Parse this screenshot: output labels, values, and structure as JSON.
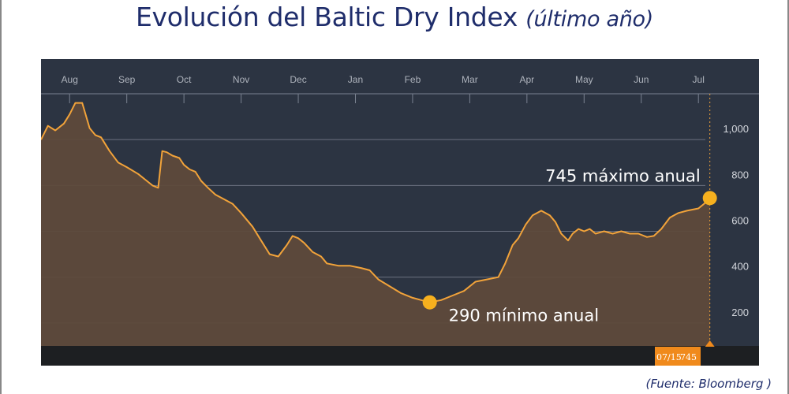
{
  "title": {
    "main": "Evolución del Baltic Dry Index",
    "sub": "(último año)"
  },
  "source": "(Fuente: Bloomberg )",
  "colors": {
    "background": "#2c3442",
    "line": "#f2a33a",
    "area": "#5e4a3b",
    "marker": "#f6b01e",
    "badge": "#f08a1c",
    "title": "#1f2d6b"
  },
  "chart_data": {
    "type": "area",
    "title": "Evolución del Baltic Dry Index (último año)",
    "xlabel": "",
    "ylabel": "",
    "x_ticks": [
      "Aug",
      "Sep",
      "Oct",
      "Nov",
      "Dec",
      "Jan",
      "Feb",
      "Mar",
      "Apr",
      "May",
      "Jun",
      "Jul"
    ],
    "y_ticks": [
      200,
      400,
      600,
      800,
      1000
    ],
    "y_tick_labels": [
      "200",
      "400",
      "600",
      "800",
      "1,000"
    ],
    "ylim": [
      100,
      1200
    ],
    "xlim": [
      0,
      12.56
    ],
    "grid": true,
    "series": [
      {
        "points": [
          [
            0.0,
            1000
          ],
          [
            0.12,
            1060
          ],
          [
            0.25,
            1040
          ],
          [
            0.4,
            1070
          ],
          [
            0.5,
            1110
          ],
          [
            0.6,
            1160
          ],
          [
            0.72,
            1160
          ],
          [
            0.85,
            1050
          ],
          [
            0.95,
            1020
          ],
          [
            1.05,
            1010
          ],
          [
            1.2,
            950
          ],
          [
            1.35,
            900
          ],
          [
            1.5,
            880
          ],
          [
            1.7,
            850
          ],
          [
            1.85,
            820
          ],
          [
            1.95,
            800
          ],
          [
            2.05,
            790
          ],
          [
            2.12,
            950
          ],
          [
            2.2,
            945
          ],
          [
            2.3,
            930
          ],
          [
            2.42,
            920
          ],
          [
            2.5,
            890
          ],
          [
            2.6,
            870
          ],
          [
            2.7,
            860
          ],
          [
            2.8,
            820
          ],
          [
            2.92,
            790
          ],
          [
            3.05,
            760
          ],
          [
            3.2,
            740
          ],
          [
            3.35,
            720
          ],
          [
            3.5,
            680
          ],
          [
            3.7,
            620
          ],
          [
            3.85,
            560
          ],
          [
            4.0,
            500
          ],
          [
            4.15,
            490
          ],
          [
            4.3,
            540
          ],
          [
            4.4,
            580
          ],
          [
            4.5,
            570
          ],
          [
            4.6,
            550
          ],
          [
            4.75,
            510
          ],
          [
            4.9,
            490
          ],
          [
            5.0,
            460
          ],
          [
            5.2,
            450
          ],
          [
            5.4,
            450
          ],
          [
            5.6,
            440
          ],
          [
            5.75,
            430
          ],
          [
            5.9,
            390
          ],
          [
            6.1,
            360
          ],
          [
            6.3,
            330
          ],
          [
            6.5,
            310
          ],
          [
            6.65,
            300
          ],
          [
            6.8,
            290
          ],
          [
            7.0,
            300
          ],
          [
            7.2,
            320
          ],
          [
            7.4,
            340
          ],
          [
            7.6,
            380
          ],
          [
            7.8,
            390
          ],
          [
            8.0,
            400
          ],
          [
            8.12,
            460
          ],
          [
            8.25,
            540
          ],
          [
            8.35,
            570
          ],
          [
            8.48,
            630
          ],
          [
            8.6,
            670
          ],
          [
            8.75,
            690
          ],
          [
            8.9,
            670
          ],
          [
            9.0,
            640
          ],
          [
            9.1,
            590
          ],
          [
            9.22,
            560
          ],
          [
            9.3,
            590
          ],
          [
            9.4,
            610
          ],
          [
            9.5,
            600
          ],
          [
            9.6,
            610
          ],
          [
            9.7,
            590
          ],
          [
            9.85,
            600
          ],
          [
            10.0,
            590
          ],
          [
            10.15,
            600
          ],
          [
            10.3,
            590
          ],
          [
            10.45,
            590
          ],
          [
            10.6,
            575
          ],
          [
            10.72,
            580
          ],
          [
            10.85,
            610
          ],
          [
            11.0,
            660
          ],
          [
            11.15,
            680
          ],
          [
            11.3,
            690
          ],
          [
            11.5,
            700
          ],
          [
            11.6,
            720
          ],
          [
            11.7,
            745
          ]
        ]
      }
    ],
    "annotations": [
      {
        "label": "745 máximo anual",
        "x": 11.7,
        "y": 745
      },
      {
        "label": "290 mínimo anual",
        "x": 6.8,
        "y": 290
      }
    ],
    "cursor": {
      "date": "07/15",
      "value": "745",
      "x": 11.7
    }
  }
}
